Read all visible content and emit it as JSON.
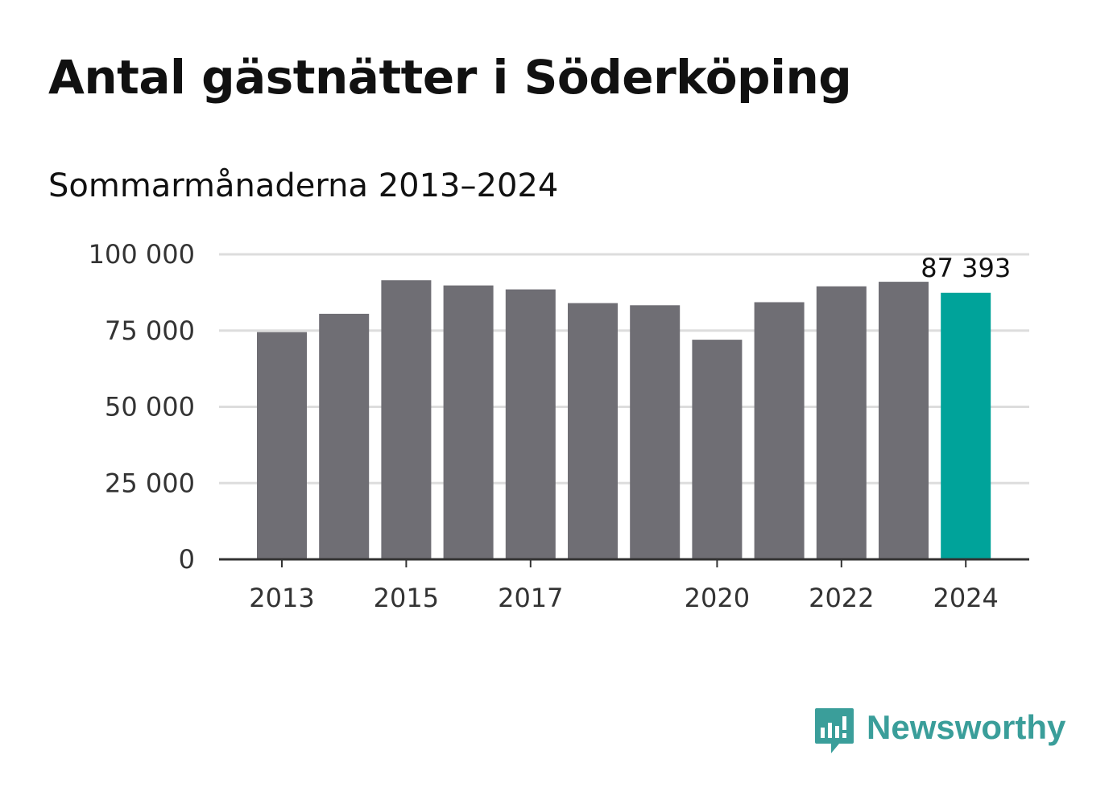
{
  "title": "Antal gästnätter i Söderköping",
  "subtitle": "Sommarmånaderna 2013–2024",
  "brand": {
    "name": "Newsworthy",
    "icon": "newsworthy-logo-icon"
  },
  "colors": {
    "bar": "#6f6e74",
    "highlight": "#00a39a",
    "grid": "#dddddd",
    "axis": "#333333",
    "brand": "#3a9e9a"
  },
  "chart_data": {
    "type": "bar",
    "categories": [
      "2013",
      "2014",
      "2015",
      "2016",
      "2017",
      "2018",
      "2019",
      "2020",
      "2021",
      "2022",
      "2023",
      "2024"
    ],
    "values": [
      74500,
      80500,
      91500,
      89800,
      88500,
      84000,
      83300,
      72000,
      84300,
      89500,
      91000,
      87393
    ],
    "highlight_index": 11,
    "highlight_label": "87 393",
    "x_tick_labels": [
      "2013",
      "",
      "2015",
      "",
      "2017",
      "",
      "",
      "2020",
      "",
      "2022",
      "",
      "2024"
    ],
    "y_ticks": [
      0,
      25000,
      50000,
      75000,
      100000
    ],
    "y_tick_labels": [
      "0",
      "25 000",
      "50 000",
      "75 000",
      "100 000"
    ],
    "ylim": [
      0,
      100000
    ],
    "grid": true,
    "legend": "none",
    "xlabel": "",
    "ylabel": ""
  }
}
